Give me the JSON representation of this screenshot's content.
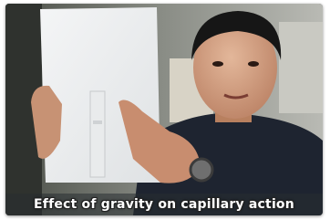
{
  "caption": "Effect of gravity on capillary action"
}
